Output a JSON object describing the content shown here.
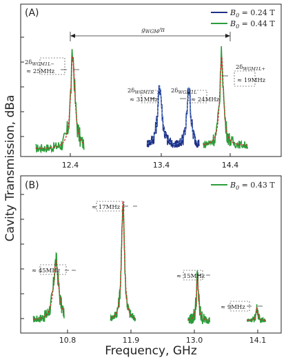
{
  "chart_data": [
    {
      "type": "line",
      "panel": "(A)",
      "x_ticks": [
        "12.4",
        "13.4",
        "14.4"
      ],
      "xlim": [
        11.7,
        15.2
      ],
      "ylim": [
        0,
        1.0
      ],
      "legend": [
        "B_0 = 0.24 T",
        "B_0 = 0.44 T"
      ],
      "legend_placement": "top-right",
      "series": [
        {
          "name": "B_0 = 0.24 T",
          "color": "#1f2f86",
          "peaks": [
            {
              "x": 13.57,
              "y": 0.53
            },
            {
              "x": 13.97,
              "y": 0.53
            }
          ],
          "baseline": 0.05
        },
        {
          "name": "B_0 = 0.44 T",
          "color": "#2a9d3a",
          "peaks": [
            {
              "x": 12.4,
              "y": 0.8
            },
            {
              "x": 14.4,
              "y": 0.8
            }
          ],
          "baseline": 0.05
        }
      ],
      "fit_color": "#d62b2b",
      "fit_color_blue": "#5a8fd8",
      "annotations": {
        "span": "g_WGM / π",
        "a1_line1": "2δ_WGM1L−",
        "a1_line2": "≈ 25MHz",
        "a2_line1": "2δ_WGM1R",
        "a2_line2": "≈ 31MHz",
        "a3_line1": "2δ_WGM1L",
        "a3_line2": "≈ 24MHz",
        "a4_line1": "2δ_WGM1L+",
        "a4_line2": "≈ 19MHz"
      }
    },
    {
      "type": "line",
      "panel": "(B)",
      "x_ticks": [
        "10.8",
        "11.9",
        "13.0",
        "14.1"
      ],
      "xlim": [
        10.25,
        14.45
      ],
      "ylim": [
        0,
        1.0
      ],
      "legend": [
        "B_0 = 0.43 T"
      ],
      "legend_placement": "top-right",
      "series": [
        {
          "name": "B_0 = 0.43 T",
          "color": "#2a9d3a",
          "peaks": [
            {
              "x": 10.82,
              "y": 0.44
            },
            {
              "x": 11.9,
              "y": 0.82
            },
            {
              "x": 13.1,
              "y": 0.36
            },
            {
              "x": 14.06,
              "y": 0.09
            }
          ],
          "baseline": 0.1
        }
      ],
      "fit_color": "#d62b2b",
      "annotations": {
        "b1": "≈ 45MHz",
        "b2": "≈ 17MHz",
        "b3": "≈ 15MHz",
        "b4": "≈ 9MHz"
      }
    }
  ],
  "labels": {
    "ylabel": "Cavity Transmission, dBa",
    "xlabel": "Frequency, GHz",
    "panelA": "(A)",
    "panelB": "(B)",
    "legendA1_sym": "B",
    "legendA1_sub": "0",
    "legendA1_val": " = 0.24 T",
    "legendA2_sym": "B",
    "legendA2_sub": "0",
    "legendA2_val": " = 0.44 T",
    "legendB1_sym": "B",
    "legendB1_sub": "0",
    "legendB1_val": " = 0.43 T",
    "gwgm": "g_WGM/π",
    "xtA": [
      "12.4",
      "13.4",
      "14.4"
    ],
    "xtB": [
      "10.8",
      "11.9",
      "13.0",
      "14.1"
    ]
  },
  "colors": {
    "green": "#2a9d3a",
    "navy": "#1f2f86",
    "red": "#d62b2b",
    "lightblue": "#5a8fd8"
  }
}
